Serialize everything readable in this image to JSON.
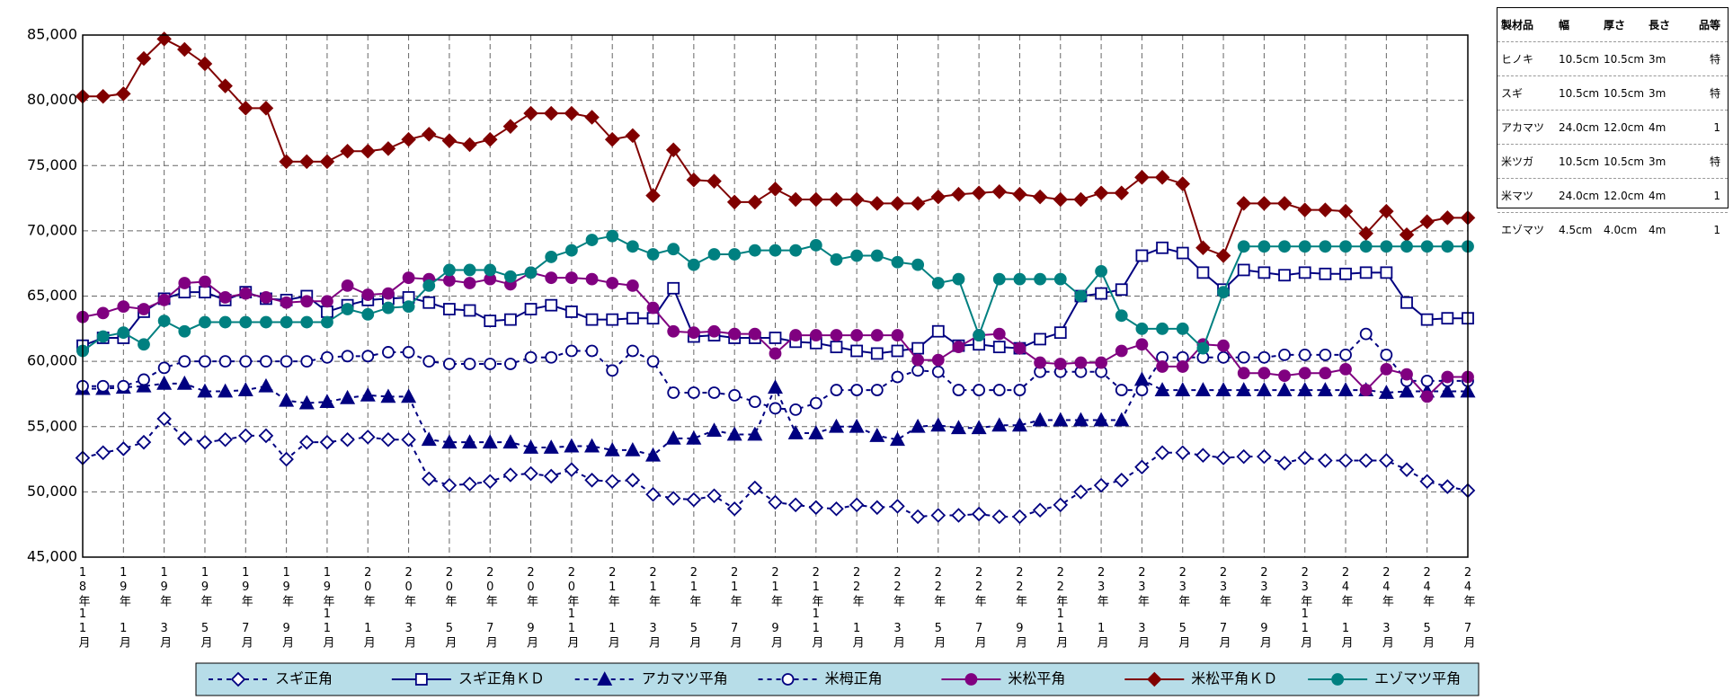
{
  "chart_data": {
    "type": "line",
    "categories": [
      "18年11月",
      null,
      "19年 1月",
      null,
      "19年 3月",
      null,
      "19年 5月",
      null,
      "19年 7月",
      null,
      "19年 9月",
      null,
      "19年11月",
      null,
      "20年 1月",
      null,
      "20年 3月",
      null,
      "20年 5月",
      null,
      "20年 7月",
      null,
      "20年 9月",
      null,
      "20年11月",
      null,
      "21年 1月",
      null,
      "21年 3月",
      null,
      "21年 5月",
      null,
      "21年 7月",
      null,
      "21年 9月",
      null,
      "21年11月",
      null,
      "22年 1月",
      null,
      "22年 3月",
      null,
      "22年 5月",
      null,
      "22年 7月",
      null,
      "22年 9月",
      null,
      "22年11月",
      null,
      "23年 1月",
      null,
      "23年 3月",
      null,
      "23年 5月",
      null,
      "23年 7月",
      null,
      "23年 9月",
      null,
      "23年11月",
      null,
      "24年 1月",
      null,
      "24年 3月",
      null,
      "24年 5月",
      null,
      "24年 7月"
    ],
    "ylim": [
      45000,
      85000
    ],
    "yticks": [
      {
        "value": 45000,
        "label": "45,000"
      },
      {
        "value": 50000,
        "label": "50,000"
      },
      {
        "value": 55000,
        "label": "55,000"
      },
      {
        "value": 60000,
        "label": "60,000"
      },
      {
        "value": 65000,
        "label": "65,000"
      },
      {
        "value": 70000,
        "label": "70,000"
      },
      {
        "value": 75000,
        "label": "75,000"
      },
      {
        "value": 80000,
        "label": "80,000"
      },
      {
        "value": 85000,
        "label": "85,000"
      }
    ],
    "grid": true,
    "legend": "bottom",
    "series": [
      {
        "name": "スギ正角",
        "color": "#000080",
        "dashed": true,
        "marker": "diamond-open",
        "values": [
          52600,
          53000,
          53300,
          53800,
          55600,
          54100,
          53800,
          54000,
          54300,
          54300,
          52500,
          53800,
          53800,
          54000,
          54200,
          54000,
          54000,
          51000,
          50500,
          50600,
          50800,
          51300,
          51400,
          51200,
          51700,
          50900,
          50800,
          50900,
          49800,
          49500,
          49400,
          49700,
          48700,
          50300,
          49200,
          49000,
          48800,
          48700,
          49000,
          48800,
          48900,
          48100,
          48200,
          48200,
          48300,
          48100,
          48100,
          48600,
          49000,
          50000,
          50500,
          50900,
          51900,
          53000,
          53000,
          52800,
          52600,
          52700,
          52700,
          52200,
          52600,
          52400,
          52400,
          52400,
          52400,
          51700,
          50800,
          50400,
          50100
        ]
      },
      {
        "name": "スギ正角ＫＤ",
        "color": "#000080",
        "dashed": false,
        "marker": "square-open",
        "values": [
          61200,
          61800,
          61800,
          63800,
          64800,
          65300,
          65300,
          64700,
          65300,
          64800,
          64700,
          65000,
          63800,
          64300,
          64700,
          64800,
          64900,
          64500,
          64000,
          63900,
          63100,
          63200,
          64000,
          64300,
          63800,
          63200,
          63200,
          63300,
          63300,
          65600,
          61900,
          62000,
          61800,
          61800,
          61800,
          61500,
          61400,
          61100,
          60800,
          60600,
          60800,
          61000,
          62300,
          61200,
          61300,
          61100,
          61000,
          61700,
          62200,
          65000,
          65200,
          65500,
          68100,
          68700,
          68300,
          66800,
          65500,
          67000,
          66800,
          66600,
          66800,
          66700,
          66700,
          66800,
          66800,
          64500,
          63200,
          63300,
          63300
        ]
      },
      {
        "name": "アカマツ平角",
        "color": "#000080",
        "dashed": true,
        "marker": "triangle",
        "values": [
          57900,
          57900,
          58000,
          58100,
          58300,
          58300,
          57700,
          57700,
          57800,
          58100,
          57000,
          56800,
          56900,
          57200,
          57400,
          57300,
          57300,
          54000,
          53800,
          53800,
          53800,
          53800,
          53400,
          53400,
          53500,
          53500,
          53200,
          53200,
          52800,
          54100,
          54100,
          54700,
          54400,
          54400,
          58000,
          54500,
          54500,
          55000,
          55000,
          54300,
          54000,
          55000,
          55100,
          54900,
          54900,
          55100,
          55100,
          55500,
          55500,
          55500,
          55500,
          55500,
          58600,
          57800,
          57800,
          57800,
          57800,
          57800,
          57800,
          57800,
          57800,
          57800,
          57800,
          57800,
          57600,
          57700,
          57700,
          57700,
          57700
        ]
      },
      {
        "name": "米栂正角",
        "color": "#000080",
        "dashed": true,
        "marker": "circle-open",
        "values": [
          58100,
          58100,
          58100,
          58600,
          59500,
          60000,
          60000,
          60000,
          60000,
          60000,
          60000,
          60000,
          60300,
          60400,
          60400,
          60700,
          60700,
          60000,
          59800,
          59800,
          59800,
          59800,
          60300,
          60300,
          60800,
          60800,
          59300,
          60800,
          60000,
          57600,
          57600,
          57600,
          57400,
          56900,
          56400,
          56300,
          56800,
          57800,
          57800,
          57800,
          58800,
          59300,
          59200,
          57800,
          57800,
          57800,
          57800,
          59200,
          59200,
          59200,
          59200,
          57800,
          57800,
          60300,
          60300,
          60300,
          60300,
          60300,
          60300,
          60500,
          60500,
          60500,
          60500,
          62100,
          60500,
          58500,
          58500,
          58500,
          58500
        ]
      },
      {
        "name": "米松平角",
        "color": "#800080",
        "dashed": false,
        "marker": "circle",
        "values": [
          63400,
          63700,
          64200,
          64000,
          64700,
          66000,
          66100,
          64900,
          65200,
          64900,
          64500,
          64600,
          64600,
          65800,
          65100,
          65200,
          66400,
          66300,
          66200,
          66000,
          66300,
          65900,
          66800,
          66400,
          66400,
          66300,
          66000,
          65800,
          64100,
          62300,
          62200,
          62300,
          62100,
          62100,
          60600,
          62000,
          62000,
          62000,
          62000,
          62000,
          62000,
          60100,
          60100,
          61100,
          62000,
          62100,
          61000,
          59900,
          59800,
          59900,
          59900,
          60800,
          61300,
          59600,
          59600,
          61300,
          61200,
          59100,
          59100,
          58900,
          59100,
          59100,
          59400,
          57800,
          59400,
          59000,
          57300,
          58800,
          58800
        ]
      },
      {
        "name": "米松平角ＫＤ",
        "color": "#800000",
        "dashed": false,
        "marker": "diamond",
        "values": [
          80300,
          80300,
          80500,
          83200,
          84700,
          83900,
          82800,
          81100,
          79400,
          79400,
          75300,
          75300,
          75300,
          76100,
          76100,
          76300,
          77000,
          77400,
          76900,
          76600,
          77000,
          78000,
          79000,
          79000,
          79000,
          78700,
          77000,
          77300,
          72700,
          76200,
          73900,
          73800,
          72200,
          72200,
          73200,
          72400,
          72400,
          72400,
          72400,
          72100,
          72100,
          72100,
          72600,
          72800,
          72900,
          73000,
          72800,
          72600,
          72400,
          72400,
          72900,
          72900,
          74100,
          74100,
          73600,
          68700,
          68100,
          72100,
          72100,
          72100,
          71600,
          71600,
          71500,
          69800,
          71500,
          69700,
          70700,
          71000,
          71000
        ]
      },
      {
        "name": "エゾマツ平角",
        "color": "#008080",
        "dashed": false,
        "marker": "circle",
        "values": [
          60800,
          61900,
          62200,
          61300,
          63100,
          62300,
          63000,
          63000,
          63000,
          63000,
          63000,
          63000,
          63000,
          64000,
          63600,
          64100,
          64200,
          65800,
          67000,
          67000,
          67000,
          66500,
          66800,
          68000,
          68500,
          69300,
          69600,
          68800,
          68200,
          68600,
          67400,
          68200,
          68200,
          68500,
          68500,
          68500,
          68900,
          67800,
          68100,
          68100,
          67600,
          67400,
          66000,
          66300,
          62000,
          66300,
          66300,
          66300,
          66300,
          65000,
          66900,
          63500,
          62500,
          62500,
          62500,
          61000,
          65300,
          68800,
          68800,
          68800,
          68800,
          68800,
          68800,
          68800,
          68800,
          68800,
          68800,
          68800,
          68800
        ]
      }
    ]
  },
  "table": {
    "header": [
      "製材品",
      "幅",
      "厚さ",
      "長さ",
      "品等"
    ],
    "rows": [
      [
        "ヒノキ",
        "10.5cm",
        "10.5cm",
        "3m",
        "特"
      ],
      [
        "スギ",
        "10.5cm",
        "10.5cm",
        "3m",
        "特"
      ],
      [
        "アカマツ",
        "24.0cm",
        "12.0cm",
        "4m",
        "1"
      ],
      [
        "米ツガ",
        "10.5cm",
        "10.5cm",
        "3m",
        "特"
      ],
      [
        "米マツ",
        "24.0cm",
        "12.0cm",
        "4m",
        "1"
      ],
      [
        "エゾマツ",
        "4.5cm",
        "4.0cm",
        "4m",
        "1"
      ]
    ]
  }
}
